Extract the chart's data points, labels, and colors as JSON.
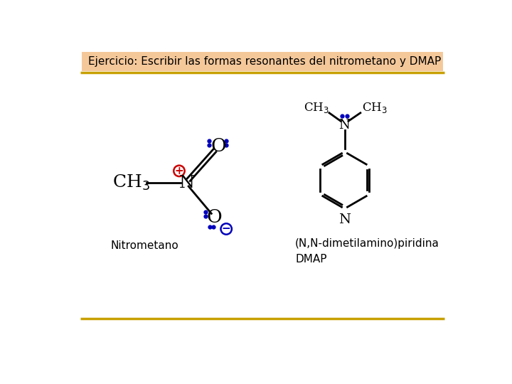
{
  "title": "Ejercicio: Escribir las formas resonantes del nitrometano y DMAP",
  "title_bg": "#f5c89a",
  "bg_color": "#ffffff",
  "border_color": "#c8a000",
  "label_nitro": "Nitrometano",
  "label_dmap": "(N,N-dimetilamino)piridina\nDMAP",
  "black": "#000000",
  "blue": "#0000bb",
  "red": "#cc0000"
}
